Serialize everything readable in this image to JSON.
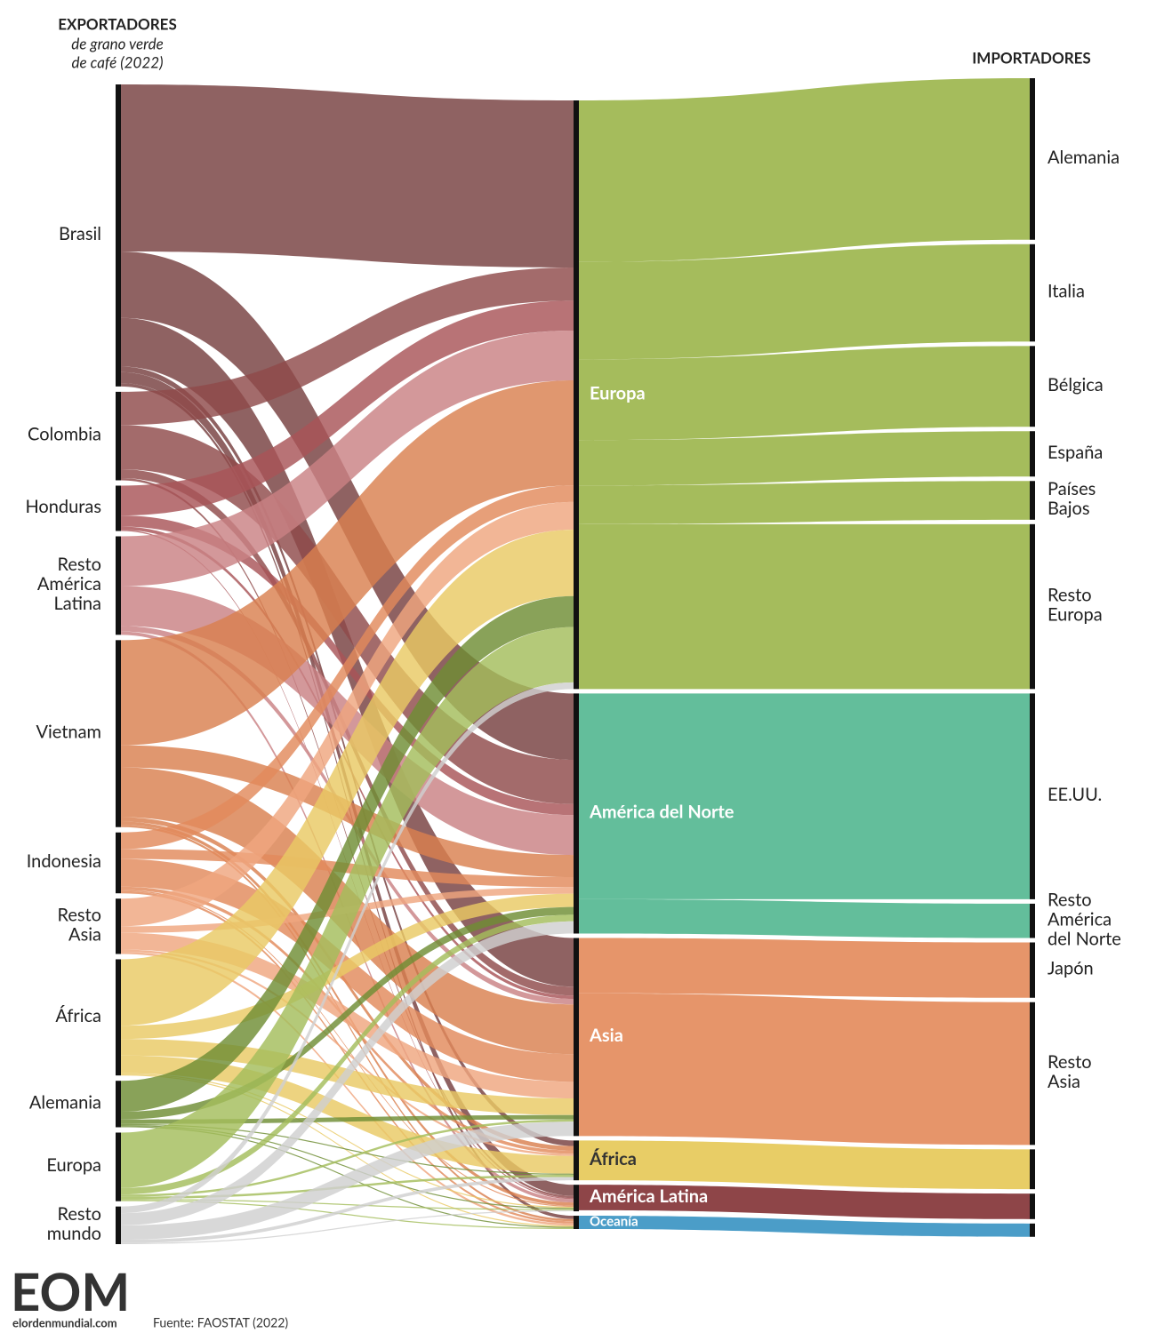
{
  "chart_data": {
    "type": "sankey",
    "left_title": "EXPORTADORES",
    "left_subtitle": [
      "de grano verde",
      "de café (2022)"
    ],
    "right_title": "IMPORTADORES",
    "logo": "EOM",
    "site": "elordenmundial.com",
    "source": "Fuente: FAOSTAT (2022)",
    "nodes": [
      {
        "name": [
          "Brasil"
        ],
        "column": 0,
        "color": "#76403f"
      },
      {
        "name": [
          "Colombia"
        ],
        "column": 0,
        "color": "#8f4a4a"
      },
      {
        "name": [
          "Honduras"
        ],
        "column": 0,
        "color": "#a85458"
      },
      {
        "name": [
          "Resto",
          "América",
          "Latina"
        ],
        "column": 0,
        "color": "#c98184"
      },
      {
        "name": [
          "Vietnam"
        ],
        "column": 0,
        "color": "#d9804f"
      },
      {
        "name": [
          "Indonesia"
        ],
        "column": 0,
        "color": "#e28a5c"
      },
      {
        "name": [
          "Resto",
          "Asia"
        ],
        "column": 0,
        "color": "#efa67f"
      },
      {
        "name": [
          "África"
        ],
        "column": 0,
        "color": "#e9c964"
      },
      {
        "name": [
          "Alemania"
        ],
        "column": 0,
        "color": "#6f8d34"
      },
      {
        "name": [
          "Europa"
        ],
        "column": 0,
        "color": "#a3bd5b"
      },
      {
        "name": [
          "Resto",
          "mundo"
        ],
        "column": 0,
        "color": "#cfcfcf"
      },
      {
        "name": [
          "Europa"
        ],
        "column": 1,
        "color": "#a5bc5c",
        "label_color": "#ffffff"
      },
      {
        "name": [
          "América del Norte"
        ],
        "column": 1,
        "color": "#63be9b",
        "label_color": "#ffffff"
      },
      {
        "name": [
          "Asia"
        ],
        "column": 1,
        "color": "#e6956a",
        "label_color": "#ffffff"
      },
      {
        "name": [
          "África"
        ],
        "column": 1,
        "color": "#e8cd66",
        "label_color": "#333333"
      },
      {
        "name": [
          "América Latina"
        ],
        "column": 1,
        "color": "#8e4548",
        "label_color": "#ffffff"
      },
      {
        "name": [
          "Oceanía"
        ],
        "column": 1,
        "color": "#4b9dc8",
        "label_color": "#ffffff"
      },
      {
        "name": [
          "Alemania"
        ],
        "column": 2,
        "color": "#a5bc5c"
      },
      {
        "name": [
          "Italia"
        ],
        "column": 2,
        "color": "#a5bc5c"
      },
      {
        "name": [
          "Bélgica"
        ],
        "column": 2,
        "color": "#a5bc5c"
      },
      {
        "name": [
          "España"
        ],
        "column": 2,
        "color": "#a5bc5c"
      },
      {
        "name": [
          "Países",
          "Bajos"
        ],
        "column": 2,
        "color": "#a5bc5c"
      },
      {
        "name": [
          "Resto",
          "Europa"
        ],
        "column": 2,
        "color": "#a5bc5c"
      },
      {
        "name": [
          "EE.UU."
        ],
        "column": 2,
        "color": "#63be9b"
      },
      {
        "name": [
          "Resto",
          "América",
          "del Norte"
        ],
        "column": 2,
        "color": "#63be9b"
      },
      {
        "name": [
          "Japón"
        ],
        "column": 2,
        "color": "#e6956a"
      },
      {
        "name": [
          "Resto",
          "Asia"
        ],
        "column": 2,
        "color": "#e6956a"
      },
      {
        "name": null,
        "column": 2,
        "color": "#e8cd66"
      },
      {
        "name": null,
        "column": 2,
        "color": "#8e4548"
      },
      {
        "name": null,
        "column": 2,
        "color": "#4b9dc8"
      }
    ],
    "links": [
      {
        "source": 0,
        "target": 11,
        "value": 15.1
      },
      {
        "source": 0,
        "target": 12,
        "value": 6.0
      },
      {
        "source": 0,
        "target": 13,
        "value": 4.4
      },
      {
        "source": 0,
        "target": 14,
        "value": 0.5
      },
      {
        "source": 0,
        "target": 15,
        "value": 1.0
      },
      {
        "source": 0,
        "target": 16,
        "value": 0.3
      },
      {
        "source": 1,
        "target": 11,
        "value": 3.0
      },
      {
        "source": 1,
        "target": 12,
        "value": 4.0
      },
      {
        "source": 1,
        "target": 13,
        "value": 0.8
      },
      {
        "source": 1,
        "target": 15,
        "value": 0.2
      },
      {
        "source": 2,
        "target": 11,
        "value": 2.7
      },
      {
        "source": 2,
        "target": 12,
        "value": 1.0
      },
      {
        "source": 2,
        "target": 13,
        "value": 0.3
      },
      {
        "source": 2,
        "target": 15,
        "value": 0.1
      },
      {
        "source": 3,
        "target": 11,
        "value": 4.5
      },
      {
        "source": 3,
        "target": 12,
        "value": 3.6
      },
      {
        "source": 3,
        "target": 13,
        "value": 0.5
      },
      {
        "source": 3,
        "target": 15,
        "value": 0.3
      },
      {
        "source": 4,
        "target": 11,
        "value": 9.5
      },
      {
        "source": 4,
        "target": 12,
        "value": 2.0
      },
      {
        "source": 4,
        "target": 13,
        "value": 4.5
      },
      {
        "source": 4,
        "target": 14,
        "value": 0.4
      },
      {
        "source": 4,
        "target": 15,
        "value": 0.3
      },
      {
        "source": 4,
        "target": 16,
        "value": 0.2
      },
      {
        "source": 5,
        "target": 11,
        "value": 1.5
      },
      {
        "source": 5,
        "target": 12,
        "value": 0.9
      },
      {
        "source": 5,
        "target": 13,
        "value": 2.5
      },
      {
        "source": 5,
        "target": 14,
        "value": 0.3
      },
      {
        "source": 5,
        "target": 15,
        "value": 0.1
      },
      {
        "source": 5,
        "target": 16,
        "value": 0.2
      },
      {
        "source": 6,
        "target": 11,
        "value": 2.5
      },
      {
        "source": 6,
        "target": 12,
        "value": 0.6
      },
      {
        "source": 6,
        "target": 13,
        "value": 1.5
      },
      {
        "source": 6,
        "target": 14,
        "value": 0.2
      },
      {
        "source": 6,
        "target": 16,
        "value": 0.2
      },
      {
        "source": 7,
        "target": 11,
        "value": 6.0
      },
      {
        "source": 7,
        "target": 12,
        "value": 1.2
      },
      {
        "source": 7,
        "target": 13,
        "value": 1.5
      },
      {
        "source": 7,
        "target": 14,
        "value": 1.6
      },
      {
        "source": 7,
        "target": 15,
        "value": 0.1
      },
      {
        "source": 7,
        "target": 16,
        "value": 0.1
      },
      {
        "source": 8,
        "target": 11,
        "value": 2.8
      },
      {
        "source": 8,
        "target": 12,
        "value": 0.7
      },
      {
        "source": 8,
        "target": 13,
        "value": 0.4
      },
      {
        "source": 8,
        "target": 14,
        "value": 0.1
      },
      {
        "source": 8,
        "target": 15,
        "value": 0.1
      },
      {
        "source": 8,
        "target": 16,
        "value": 0.1
      },
      {
        "source": 9,
        "target": 11,
        "value": 5.0
      },
      {
        "source": 9,
        "target": 12,
        "value": 0.6
      },
      {
        "source": 9,
        "target": 13,
        "value": 0.2
      },
      {
        "source": 9,
        "target": 14,
        "value": 0.2
      },
      {
        "source": 9,
        "target": 15,
        "value": 0.1
      },
      {
        "source": 9,
        "target": 16,
        "value": 0.1
      },
      {
        "source": 10,
        "target": 11,
        "value": 0.6
      },
      {
        "source": 10,
        "target": 12,
        "value": 1.1
      },
      {
        "source": 10,
        "target": 13,
        "value": 1.3
      },
      {
        "source": 10,
        "target": 14,
        "value": 0.3
      },
      {
        "source": 10,
        "target": 15,
        "value": 0.1
      },
      {
        "source": 11,
        "target": 17,
        "value": 14.6
      },
      {
        "source": 11,
        "target": 18,
        "value": 8.8
      },
      {
        "source": 11,
        "target": 19,
        "value": 7.3
      },
      {
        "source": 11,
        "target": 20,
        "value": 4.1
      },
      {
        "source": 11,
        "target": 21,
        "value": 3.5
      },
      {
        "source": 11,
        "target": 22,
        "value": 14.9
      },
      {
        "source": 12,
        "target": 23,
        "value": 18.6
      },
      {
        "source": 12,
        "target": 24,
        "value": 3.1
      },
      {
        "source": 13,
        "target": 25,
        "value": 5.0
      },
      {
        "source": 13,
        "target": 26,
        "value": 12.9
      },
      {
        "source": 14,
        "target": 27,
        "value": 3.6
      },
      {
        "source": 15,
        "target": 28,
        "value": 2.3
      },
      {
        "source": 16,
        "target": 29,
        "value": 1.2
      }
    ]
  }
}
